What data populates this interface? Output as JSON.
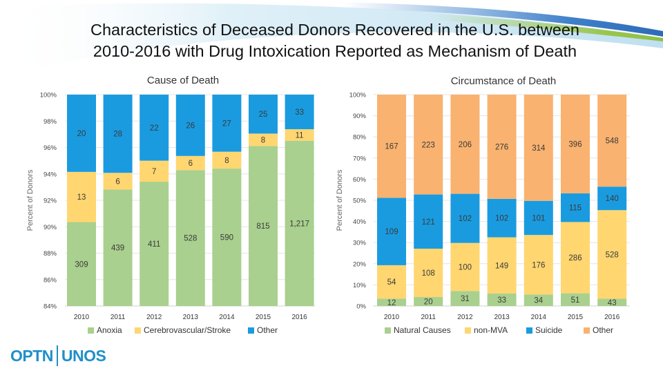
{
  "page": {
    "title_line1": "Characteristics of Deceased Donors Recovered in the U.S. between",
    "title_line2": "2010-2016 with Drug Intoxication Reported as Mechanism of Death",
    "logo_left": "OPTN",
    "logo_right": "UNOS"
  },
  "colors": {
    "green": "#a9d08e",
    "yellow": "#ffd670",
    "blue": "#1a9be0",
    "orange": "#f9b26f",
    "grid": "#e4e4e4"
  },
  "chart_data": [
    {
      "type": "bar",
      "stacked": "percent",
      "title": "Cause of Death",
      "xlabel": "",
      "ylabel": "Percent of Donors",
      "ylim": [
        84,
        100
      ],
      "yticks": [
        84,
        86,
        88,
        90,
        92,
        94,
        96,
        98,
        100
      ],
      "ytick_labels": [
        "84%",
        "86%",
        "88%",
        "90%",
        "92%",
        "94%",
        "96%",
        "98%",
        "100%"
      ],
      "grid": true,
      "legend": "bottom",
      "categories": [
        "2010",
        "2011",
        "2012",
        "2013",
        "2014",
        "2015",
        "2016"
      ],
      "series": [
        {
          "name": "Anoxia",
          "color": "#a9d08e",
          "values": [
            309,
            439,
            411,
            528,
            590,
            815,
            1217
          ],
          "labels": [
            "309",
            "439",
            "411",
            "528",
            "590",
            "815",
            "1,217"
          ]
        },
        {
          "name": "Cerebrovascular/Stroke",
          "color": "#ffd670",
          "values": [
            13,
            6,
            7,
            6,
            8,
            8,
            11
          ],
          "labels": [
            "13",
            "6",
            "7",
            "6",
            "8",
            "8",
            "11"
          ]
        },
        {
          "name": "Other",
          "color": "#1a9be0",
          "values": [
            20,
            28,
            22,
            26,
            27,
            25,
            33
          ],
          "labels": [
            "20",
            "28",
            "22",
            "26",
            "27",
            "25",
            "33"
          ]
        }
      ]
    },
    {
      "type": "bar",
      "stacked": "percent",
      "title": "Circumstance of Death",
      "xlabel": "",
      "ylabel": "Percent of Donors",
      "ylim": [
        0,
        100
      ],
      "yticks": [
        0,
        10,
        20,
        30,
        40,
        50,
        60,
        70,
        80,
        90,
        100
      ],
      "ytick_labels": [
        "0%",
        "10%",
        "20%",
        "30%",
        "40%",
        "50%",
        "60%",
        "70%",
        "80%",
        "90%",
        "100%"
      ],
      "grid": true,
      "legend": "bottom",
      "categories": [
        "2010",
        "2011",
        "2012",
        "2013",
        "2014",
        "2015",
        "2016"
      ],
      "series": [
        {
          "name": "Natural Causes",
          "color": "#a9d08e",
          "values": [
            12,
            20,
            31,
            33,
            34,
            51,
            43
          ],
          "labels": [
            "12",
            "20",
            "31",
            "33",
            "34",
            "51",
            "43"
          ]
        },
        {
          "name": "non-MVA",
          "color": "#ffd670",
          "values": [
            54,
            108,
            100,
            149,
            176,
            286,
            528
          ],
          "labels": [
            "54",
            "108",
            "100",
            "149",
            "176",
            "286",
            "528"
          ]
        },
        {
          "name": "Suicide",
          "color": "#1a9be0",
          "values": [
            109,
            121,
            102,
            102,
            101,
            115,
            140
          ],
          "labels": [
            "109",
            "121",
            "102",
            "102",
            "101",
            "115",
            "140"
          ]
        },
        {
          "name": "Other",
          "color": "#f9b26f",
          "values": [
            167,
            223,
            206,
            276,
            314,
            396,
            548
          ],
          "labels": [
            "167",
            "223",
            "206",
            "276",
            "314",
            "396",
            "548"
          ]
        }
      ]
    }
  ]
}
